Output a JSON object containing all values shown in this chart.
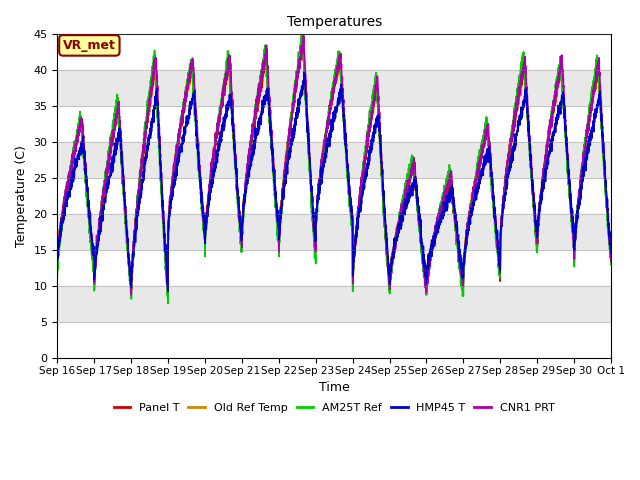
{
  "title": "Temperatures",
  "xlabel": "Time",
  "ylabel": "Temperature (C)",
  "ylim": [
    0,
    45
  ],
  "yticks": [
    0,
    5,
    10,
    15,
    20,
    25,
    30,
    35,
    40,
    45
  ],
  "n_days": 15,
  "annotation_text": "VR_met",
  "annotation_color": "#8b0000",
  "annotation_bg": "#ffff99",
  "band_color": "#e8e8e8",
  "band_ranges": [
    [
      5,
      10
    ],
    [
      15,
      20
    ],
    [
      25,
      30
    ],
    [
      35,
      40
    ]
  ],
  "line_colors": {
    "Panel T": "#cc0000",
    "Old Ref Temp": "#cc8800",
    "AM25T Ref": "#00cc00",
    "HMP45 T": "#0000cc",
    "CNR1 PRT": "#aa00aa"
  },
  "series_names": [
    "Panel T",
    "Old Ref Temp",
    "AM25T Ref",
    "HMP45 T",
    "CNR1 PRT"
  ],
  "peak_heights": [
    33,
    35,
    41,
    41,
    41,
    42,
    44,
    42,
    38,
    27,
    25,
    32,
    41,
    41,
    41
  ],
  "trough_heights": [
    13,
    10,
    9,
    17,
    16,
    17,
    15,
    18,
    10,
    10,
    10,
    12,
    16,
    16,
    14
  ],
  "points_per_day": 288
}
